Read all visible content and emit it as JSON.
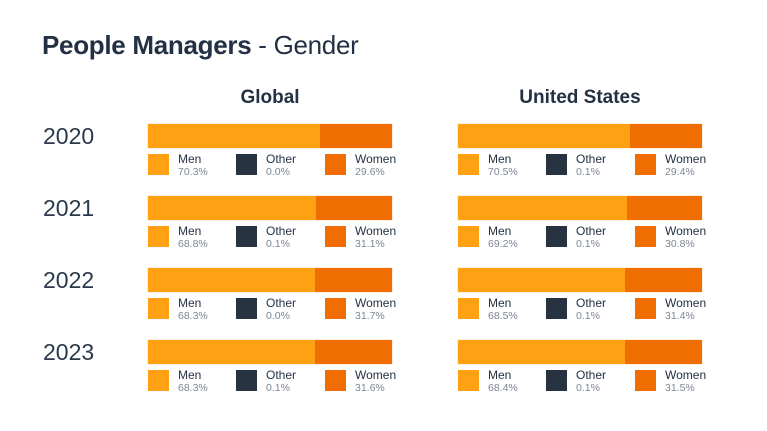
{
  "title": {
    "bold": "People Managers",
    "light": " - Gender"
  },
  "columns": {
    "global": "Global",
    "us": "United States"
  },
  "legend": {
    "men": "Men",
    "other": "Other",
    "women": "Women"
  },
  "colors": {
    "men": "#FFA113",
    "other": "#283341",
    "women": "#F06E00",
    "heading_text": "#243144",
    "percent_text": "#7D8694",
    "background": "#FFFFFF"
  },
  "rows": [
    {
      "year": "2020",
      "global": {
        "men_val": 70.3,
        "other_val": 0.0,
        "women_val": 29.6,
        "men_pct": "70.3%",
        "other_pct": "0.0%",
        "women_pct": "29.6%"
      },
      "us": {
        "men_val": 70.5,
        "other_val": 0.1,
        "women_val": 29.4,
        "men_pct": "70.5%",
        "other_pct": "0.1%",
        "women_pct": "29.4%"
      }
    },
    {
      "year": "2021",
      "global": {
        "men_val": 68.8,
        "other_val": 0.1,
        "women_val": 31.1,
        "men_pct": "68.8%",
        "other_pct": "0.1%",
        "women_pct": "31.1%"
      },
      "us": {
        "men_val": 69.2,
        "other_val": 0.1,
        "women_val": 30.8,
        "men_pct": "69.2%",
        "other_pct": "0.1%",
        "women_pct": "30.8%"
      }
    },
    {
      "year": "2022",
      "global": {
        "men_val": 68.3,
        "other_val": 0.0,
        "women_val": 31.7,
        "men_pct": "68.3%",
        "other_pct": "0.0%",
        "women_pct": "31.7%"
      },
      "us": {
        "men_val": 68.5,
        "other_val": 0.1,
        "women_val": 31.4,
        "men_pct": "68.5%",
        "other_pct": "0.1%",
        "women_pct": "31.4%"
      }
    },
    {
      "year": "2023",
      "global": {
        "men_val": 68.3,
        "other_val": 0.1,
        "women_val": 31.6,
        "men_pct": "68.3%",
        "other_pct": "0.1%",
        "women_pct": "31.6%"
      },
      "us": {
        "men_val": 68.4,
        "other_val": 0.1,
        "women_val": 31.5,
        "men_pct": "68.4%",
        "other_pct": "0.1%",
        "women_pct": "31.5%"
      }
    }
  ],
  "chart_data": {
    "type": "bar",
    "variant": "stacked-horizontal",
    "title": "People Managers - Gender",
    "unit": "%",
    "categories": [
      "2020",
      "2021",
      "2022",
      "2023"
    ],
    "groups": [
      {
        "name": "Global",
        "series": [
          {
            "name": "Men",
            "values": [
              70.3,
              68.8,
              68.3,
              68.3
            ]
          },
          {
            "name": "Other",
            "values": [
              0.0,
              0.1,
              0.0,
              0.1
            ]
          },
          {
            "name": "Women",
            "values": [
              29.6,
              31.1,
              31.7,
              31.6
            ]
          }
        ]
      },
      {
        "name": "United States",
        "series": [
          {
            "name": "Men",
            "values": [
              70.5,
              69.2,
              68.5,
              68.4
            ]
          },
          {
            "name": "Other",
            "values": [
              0.1,
              0.1,
              0.1,
              0.1
            ]
          },
          {
            "name": "Women",
            "values": [
              29.4,
              30.8,
              31.4,
              31.5
            ]
          }
        ]
      }
    ],
    "xlim": [
      0,
      100
    ],
    "grid": false,
    "legend_position": "below-each-bar",
    "colors": {
      "Men": "#FFA113",
      "Other": "#283341",
      "Women": "#F06E00"
    }
  }
}
